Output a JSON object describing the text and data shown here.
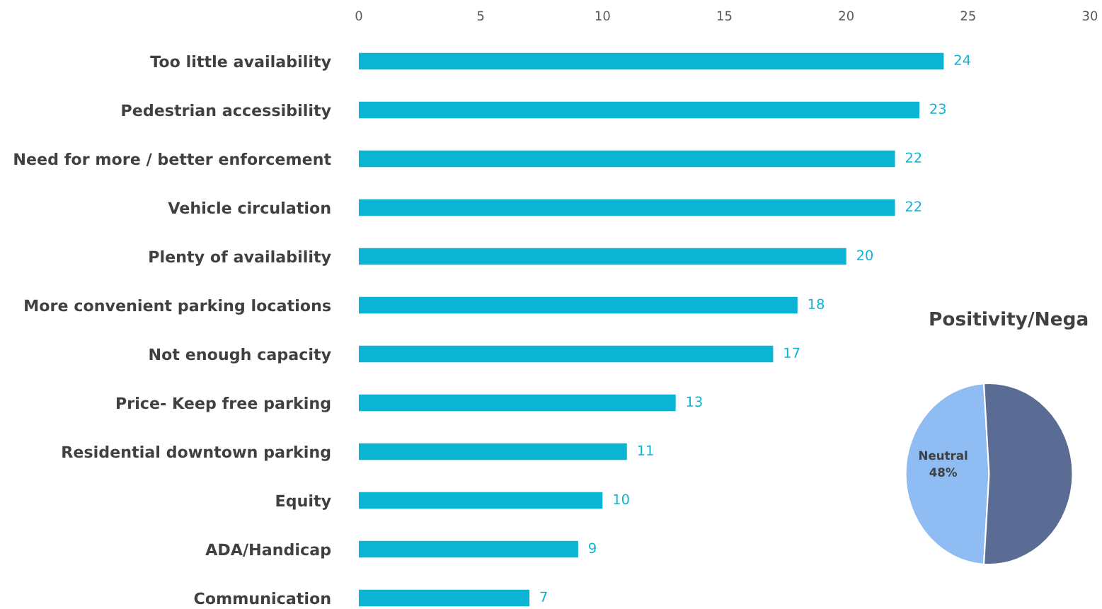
{
  "chart_data": [
    {
      "type": "bar",
      "orientation": "horizontal",
      "categories": [
        "Too little availability",
        "Pedestrian accessibility",
        "Need for more / better enforcement",
        "Vehicle circulation",
        "Plenty of availability",
        "More convenient parking locations",
        "Not enough capacity",
        "Price- Keep free parking",
        "Residential downtown parking",
        "Equity",
        "ADA/Handicap",
        "Communication"
      ],
      "values": [
        24,
        23,
        22,
        22,
        20,
        18,
        17,
        13,
        11,
        10,
        9,
        7
      ],
      "color": "#0cb4d4",
      "xlim": [
        0,
        30
      ],
      "xticks": [
        0,
        5,
        10,
        15,
        20,
        25,
        30
      ],
      "data_labels": true,
      "grid": false,
      "legend": false
    },
    {
      "type": "pie",
      "title": "Positivity/Nega",
      "categories": [
        "Neutral",
        null
      ],
      "values": [
        48,
        52
      ],
      "value_labels": [
        "48%",
        null
      ],
      "colors": [
        "#8fbcf2",
        "#5b6c94"
      ],
      "legend": false
    }
  ]
}
